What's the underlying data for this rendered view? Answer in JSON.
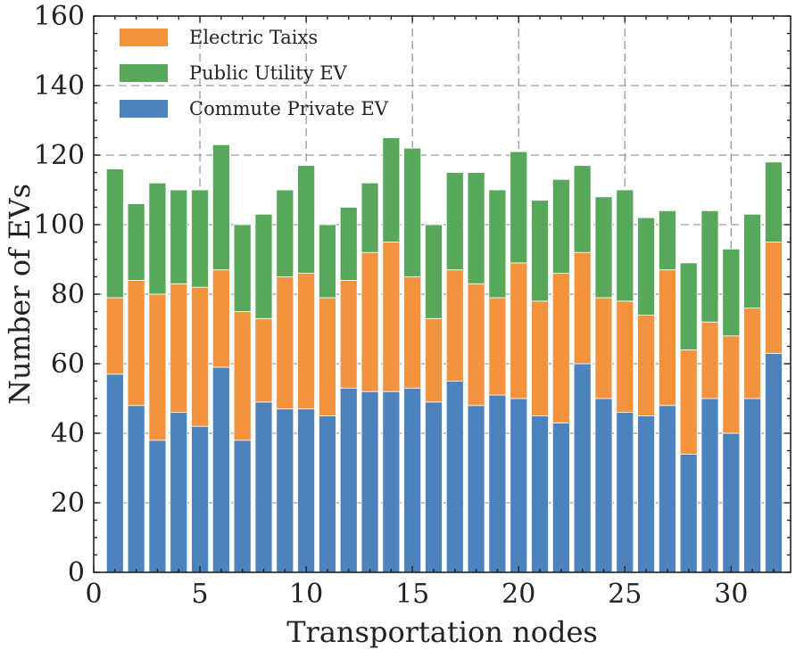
{
  "chart_data": {
    "type": "bar",
    "stacked": true,
    "xlabel": "Transportation nodes",
    "ylabel": "Number of EVs",
    "xlim": [
      0,
      32.8
    ],
    "ylim": [
      0,
      160
    ],
    "xticks": [
      0,
      5,
      10,
      15,
      20,
      25,
      30
    ],
    "yticks": [
      0,
      20,
      40,
      60,
      80,
      100,
      120,
      140,
      160
    ],
    "minor_xticks": 1,
    "minor_yticks": 5,
    "grid": true,
    "legend_position": "top-left",
    "x": [
      1,
      2,
      3,
      4,
      5,
      6,
      7,
      8,
      9,
      10,
      11,
      12,
      13,
      14,
      15,
      16,
      17,
      18,
      19,
      20,
      21,
      22,
      23,
      24,
      25,
      26,
      27,
      28,
      29,
      30,
      31,
      32
    ],
    "series": [
      {
        "name": "Commute Private EV",
        "color": "#4c82bd",
        "values": [
          57,
          48,
          38,
          46,
          42,
          59,
          38,
          49,
          47,
          47,
          45,
          53,
          52,
          52,
          53,
          49,
          55,
          48,
          51,
          50,
          45,
          43,
          60,
          50,
          46,
          45,
          48,
          34,
          50,
          40,
          50,
          63
        ]
      },
      {
        "name": "Electric Taixs",
        "color": "#f5923e",
        "values": [
          22,
          36,
          42,
          37,
          40,
          28,
          37,
          24,
          38,
          39,
          34,
          31,
          40,
          43,
          32,
          24,
          32,
          35,
          28,
          39,
          33,
          43,
          32,
          29,
          32,
          29,
          39,
          30,
          22,
          28,
          26,
          32
        ]
      },
      {
        "name": "Public Utility EV",
        "color": "#57a85a",
        "values": [
          37,
          22,
          32,
          27,
          28,
          36,
          25,
          30,
          25,
          31,
          21,
          21,
          20,
          30,
          37,
          27,
          28,
          32,
          31,
          32,
          29,
          27,
          25,
          29,
          32,
          28,
          17,
          25,
          32,
          25,
          27,
          23
        ]
      }
    ],
    "legend_order": [
      "Electric Taixs",
      "Public Utility EV",
      "Commute Private EV"
    ]
  }
}
